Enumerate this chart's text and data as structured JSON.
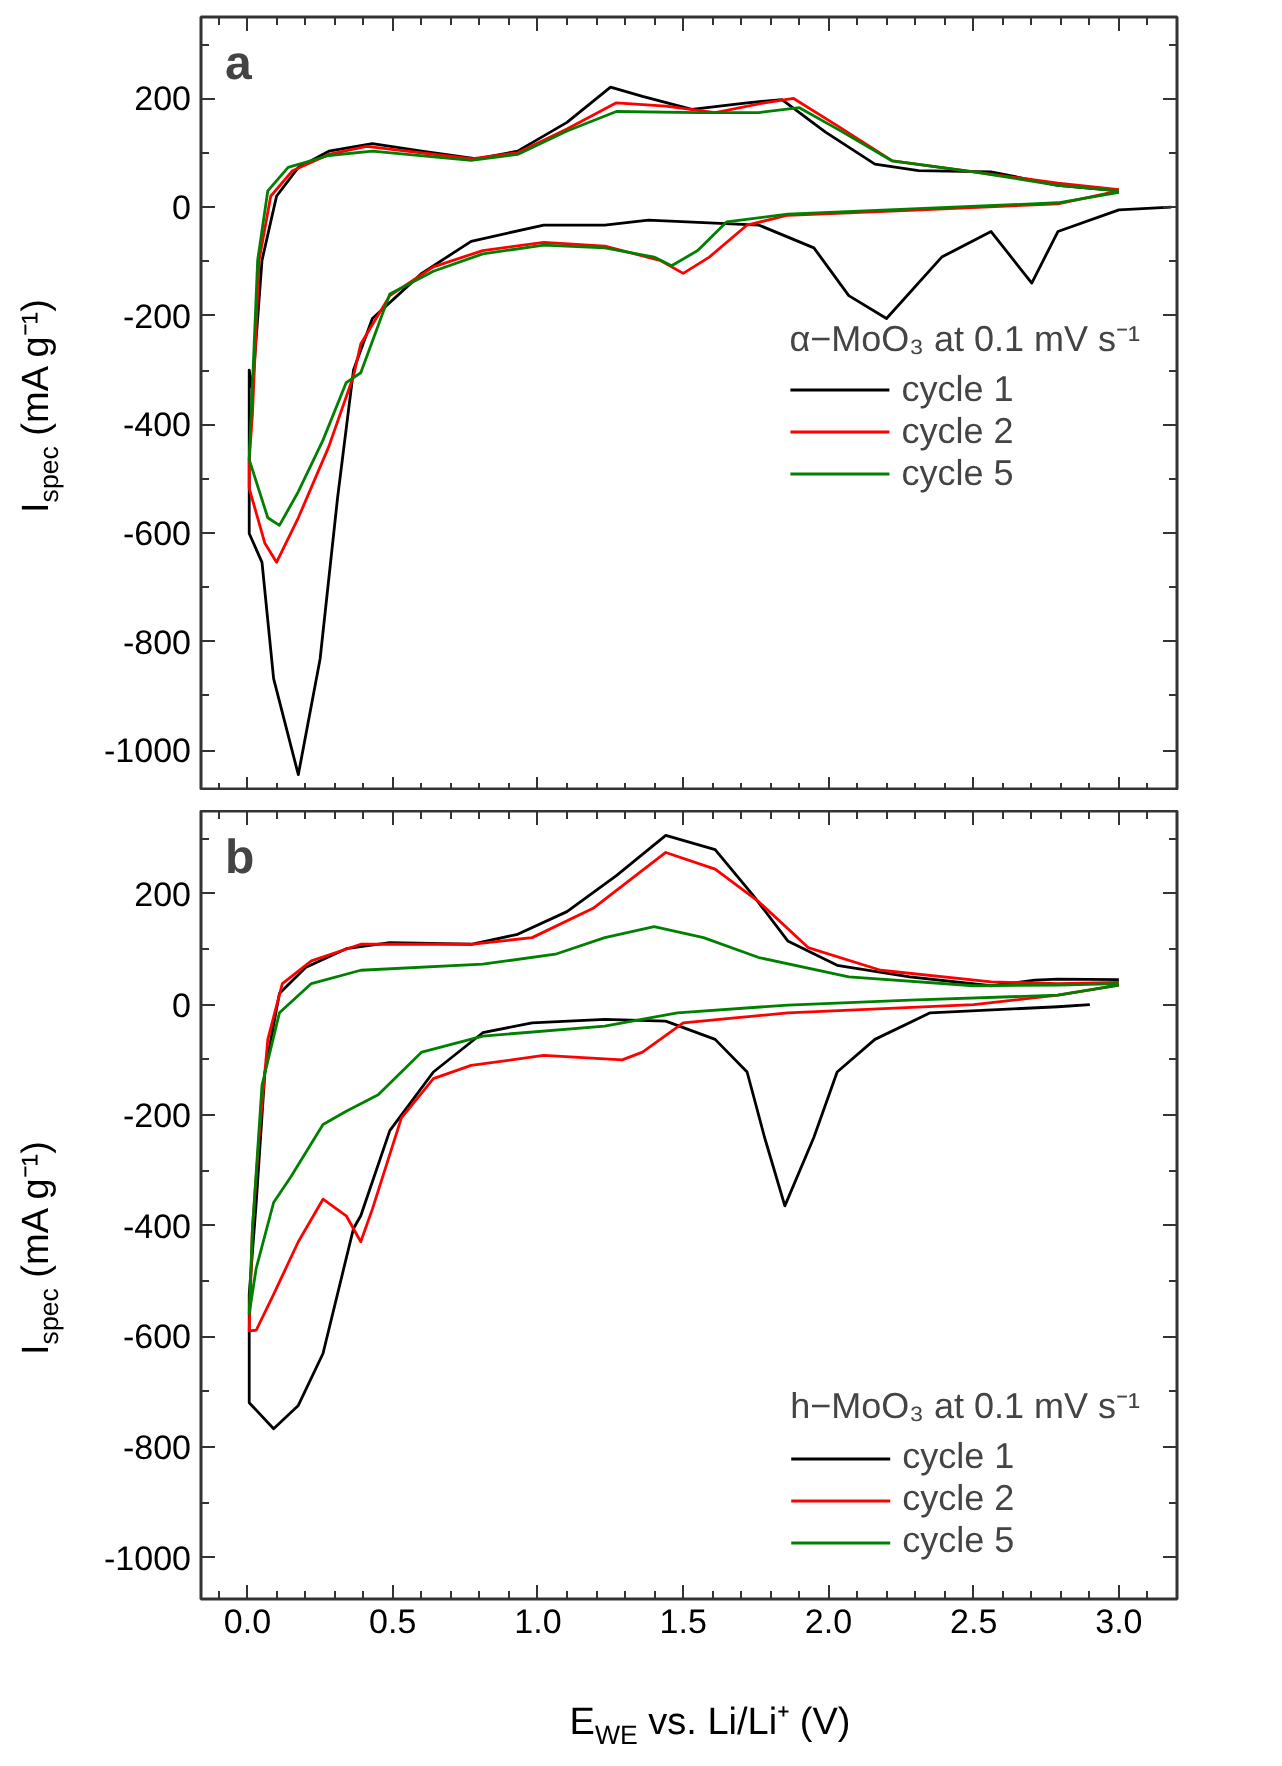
{
  "chart_data": [
    {
      "type": "line",
      "annotations": [
        "a"
      ],
      "ylabel": "I$_{spec}$ (mA g⁻¹)",
      "legend_title": "α−MoO₃ at 0.1 mV s⁻¹",
      "legend": "right",
      "tick_labels": "y",
      "xlim": [
        -0.16,
        3.2
      ],
      "ylim": [
        -1075,
        350
      ],
      "xticks": [
        {
          "value": 0,
          "label": null
        },
        {
          "value": 0.5,
          "label": null
        },
        {
          "value": 1,
          "label": null
        },
        {
          "value": 1.5,
          "label": null
        },
        {
          "value": 2,
          "label": null
        },
        {
          "value": 2.5,
          "label": null
        },
        {
          "value": 3,
          "label": null
        }
      ],
      "yticks": [
        -1000,
        -800,
        -600,
        -400,
        -200,
        0,
        200
      ],
      "series": [
        {
          "name": "cycle 1",
          "color": "#000000",
          "x": [
            3.18,
            3.0,
            2.79,
            2.7,
            2.56,
            2.39,
            2.2,
            2.07,
            1.95,
            1.76,
            1.38,
            1.23,
            1.02,
            0.77,
            0.6,
            0.43,
            0.365,
            0.31,
            0.25,
            0.175,
            0.09,
            0.05,
            0.006,
            0.006,
            0.017,
            0.05,
            0.1,
            0.175,
            0.28,
            0.43,
            0.6,
            0.79,
            0.93,
            1.1,
            1.25,
            1.36,
            1.53,
            1.72,
            1.84,
            1.99,
            2.16,
            2.31,
            2.56,
            2.79,
            3.0
          ],
          "values": [
            0,
            -5,
            -45,
            -140,
            -45,
            -92,
            -205,
            -163,
            -75,
            -33,
            -24,
            -33,
            -33,
            -63,
            -122,
            -205,
            -300,
            -536,
            -832,
            -1045,
            -868,
            -654,
            -601,
            -300,
            -335,
            -98,
            20,
            73,
            103,
            117,
            103,
            89,
            103,
            156,
            221,
            204,
            180,
            192,
            198,
            138,
            79,
            67,
            65,
            40,
            30
          ]
        },
        {
          "name": "cycle 2",
          "color": "#ff0000",
          "x": [
            3.0,
            2.79,
            2.28,
            1.86,
            1.72,
            1.59,
            1.5,
            1.42,
            1.23,
            1.02,
            0.81,
            0.64,
            0.49,
            0.39,
            0.365,
            0.28,
            0.175,
            0.1,
            0.06,
            0.006,
            0.006,
            0.017,
            0.04,
            0.08,
            0.155,
            0.28,
            0.41,
            0.77,
            0.93,
            1.1,
            1.27,
            1.44,
            1.61,
            1.78,
            1.88,
            2.03,
            2.22,
            2.5,
            2.79,
            3.0
          ],
          "values": [
            30,
            6,
            -6,
            -15,
            -33,
            -92,
            -122,
            -98,
            -72,
            -65,
            -80,
            -110,
            -163,
            -252,
            -311,
            -441,
            -572,
            -654,
            -619,
            -518,
            -465,
            -382,
            -98,
            20,
            67,
            97,
            112,
            89,
            100,
            144,
            192,
            186,
            174,
            192,
            200,
            150,
            85,
            65,
            44,
            32
          ]
        },
        {
          "name": "cycle 5",
          "color": "#008000",
          "x": [
            3.0,
            2.79,
            1.86,
            1.65,
            1.55,
            1.46,
            1.4,
            1.23,
            1.02,
            0.81,
            0.64,
            0.49,
            0.39,
            0.34,
            0.26,
            0.175,
            0.11,
            0.07,
            0.006,
            0.017,
            0.035,
            0.07,
            0.14,
            0.28,
            0.43,
            0.77,
            0.93,
            1.1,
            1.27,
            1.55,
            1.76,
            1.9,
            2.03,
            2.22,
            2.5,
            2.79,
            3.0
          ],
          "values": [
            27,
            8,
            -13,
            -27,
            -80,
            -108,
            -92,
            -75,
            -70,
            -86,
            -118,
            -160,
            -305,
            -323,
            -429,
            -524,
            -586,
            -572,
            -465,
            -330,
            -98,
            30,
            73,
            95,
            103,
            86,
            97,
            140,
            176,
            174,
            174,
            183,
            144,
            85,
            65,
            40,
            30
          ]
        }
      ]
    },
    {
      "type": "line",
      "annotations": [
        "b"
      ],
      "ylabel": "I$_{spec}$ (mA g⁻¹)",
      "xlabel": "E$_{WE}$ vs. Li/Li⁺ (V)",
      "legend_title": "h−MoO₃ at 0.1 mV s⁻¹",
      "legend": "bottom right",
      "xlim": [
        -0.16,
        3.2
      ],
      "ylim": [
        -1075,
        350
      ],
      "xticks": [
        {
          "value": 0,
          "label": "0.0"
        },
        {
          "value": 0.5,
          "label": "0.5"
        },
        {
          "value": 1,
          "label": "1.0"
        },
        {
          "value": 1.5,
          "label": "1.5"
        },
        {
          "value": 2,
          "label": "2.0"
        },
        {
          "value": 2.5,
          "label": "2.5"
        },
        {
          "value": 3,
          "label": "3.0"
        }
      ],
      "yticks": [
        -1000,
        -800,
        -600,
        -400,
        -200,
        0,
        200
      ],
      "series": [
        {
          "name": "cycle 1",
          "color": "#000000",
          "x": [
            2.9,
            2.79,
            2.35,
            2.16,
            2.03,
            1.95,
            1.85,
            1.78,
            1.72,
            1.61,
            1.44,
            1.23,
            0.98,
            0.81,
            0.64,
            0.49,
            0.39,
            0.365,
            0.26,
            0.175,
            0.09,
            0.006,
            0.006,
            0.03,
            0.06,
            0.11,
            0.2,
            0.34,
            0.49,
            0.77,
            0.93,
            1.1,
            1.27,
            1.44,
            1.61,
            1.74,
            1.86,
            2.03,
            2.28,
            2.56,
            2.71,
            2.79,
            3.0
          ],
          "values": [
            0,
            -4,
            -15,
            -63,
            -122,
            -240,
            -364,
            -240,
            -122,
            -63,
            -30,
            -27,
            -33,
            -51,
            -122,
            -228,
            -382,
            -405,
            -631,
            -725,
            -767,
            -720,
            -524,
            -359,
            -122,
            20,
            67,
            101,
            112,
            109,
            127,
            168,
            233,
            306,
            280,
            198,
            115,
            71,
            50,
            34,
            44,
            46,
            45
          ]
        },
        {
          "name": "cycle 2",
          "color": "#ff0000",
          "x": [
            3.0,
            2.79,
            2.5,
            1.86,
            1.5,
            1.36,
            1.29,
            1.02,
            0.77,
            0.64,
            0.53,
            0.43,
            0.39,
            0.34,
            0.26,
            0.175,
            0.09,
            0.03,
            0.006,
            0.017,
            0.04,
            0.07,
            0.12,
            0.22,
            0.39,
            0.77,
            0.98,
            1.19,
            1.44,
            1.61,
            1.76,
            1.93,
            2.18,
            2.56,
            2.79,
            3.0
          ],
          "values": [
            35,
            17,
            0,
            -15,
            -33,
            -86,
            -100,
            -92,
            -110,
            -134,
            -205,
            -370,
            -429,
            -382,
            -352,
            -429,
            -524,
            -589,
            -590,
            -405,
            -240,
            -63,
            38,
            79,
            109,
            109,
            121,
            174,
            275,
            245,
            186,
            103,
            62,
            41,
            38,
            40
          ]
        },
        {
          "name": "cycle 5",
          "color": "#008000",
          "x": [
            3.0,
            2.79,
            2.28,
            1.86,
            1.48,
            1.23,
            0.81,
            0.6,
            0.45,
            0.34,
            0.26,
            0.15,
            0.09,
            0.03,
            0.006,
            0.017,
            0.05,
            0.11,
            0.22,
            0.39,
            0.81,
            1.06,
            1.23,
            1.4,
            1.57,
            1.76,
            2.07,
            2.5,
            2.79,
            3.0
          ],
          "values": [
            35,
            17,
            8,
            -1,
            -15,
            -39,
            -57,
            -86,
            -163,
            -193,
            -217,
            -311,
            -358,
            -477,
            -559,
            -406,
            -146,
            -15,
            38,
            62,
            73,
            91,
            121,
            141,
            121,
            85,
            50,
            34,
            35,
            38
          ]
        }
      ]
    }
  ]
}
